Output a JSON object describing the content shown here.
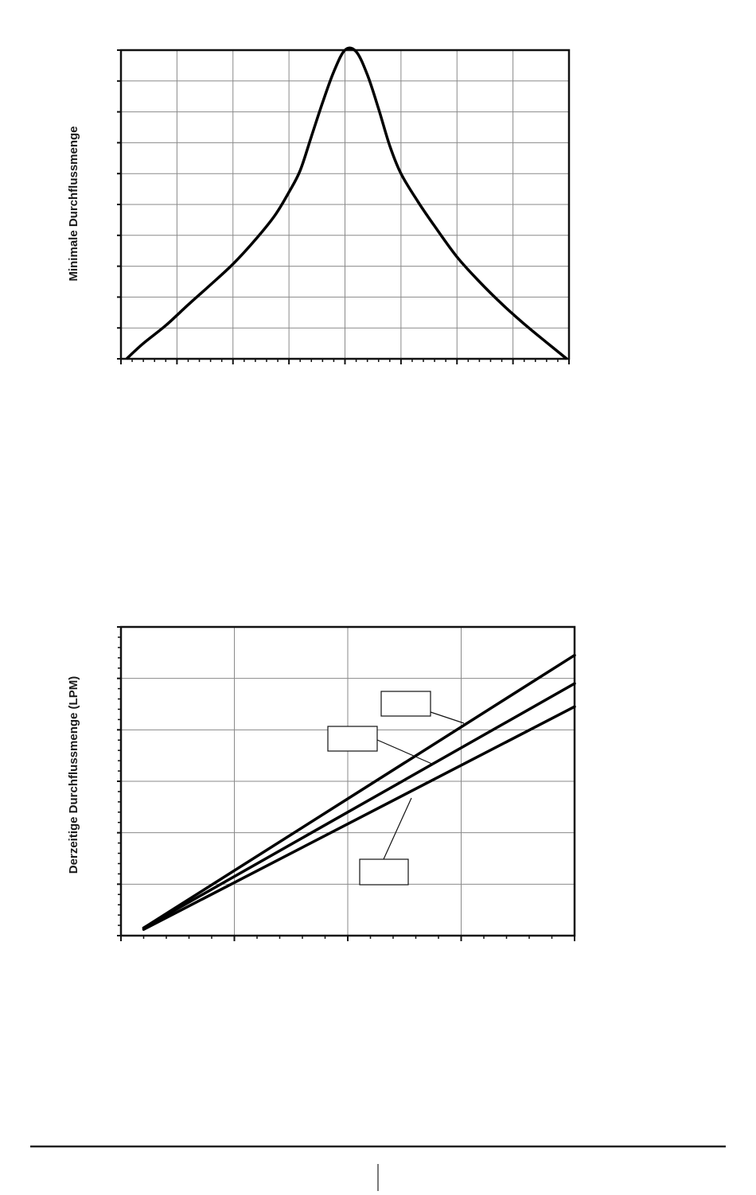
{
  "chart_data": [
    {
      "type": "line",
      "title": "",
      "xlabel": "",
      "ylabel": "Minimale Durchflussmenge",
      "xlim": [
        0,
        8
      ],
      "ylim": [
        0,
        10
      ],
      "grid": true,
      "x_major_divisions": 8,
      "x_minor_per_major": 5,
      "y_major_divisions": 10,
      "series": [
        {
          "x": [
            0.1,
            0.4,
            0.8,
            1.2,
            1.6,
            2.0,
            2.4,
            2.75,
            3.0,
            3.2,
            3.4,
            3.6,
            3.8,
            4.0,
            4.2,
            4.4,
            4.6,
            4.8,
            5.0,
            5.3,
            5.6,
            6.0,
            6.4,
            6.8,
            7.2,
            7.6,
            7.96
          ],
          "y": [
            0.0,
            0.5,
            1.08,
            1.75,
            2.4,
            3.07,
            3.86,
            4.65,
            5.4,
            6.1,
            7.2,
            8.3,
            9.3,
            10.0,
            9.95,
            9.2,
            8.1,
            6.9,
            6.0,
            5.1,
            4.3,
            3.3,
            2.5,
            1.78,
            1.13,
            0.53,
            0.0
          ]
        }
      ]
    },
    {
      "type": "line",
      "title": "",
      "xlabel": "",
      "ylabel": "Derzeitige Durchflussmenge (LPM)",
      "xlim": [
        0,
        4
      ],
      "ylim": [
        0,
        6
      ],
      "grid": true,
      "x_major_divisions": 4,
      "x_minor_per_major": 5,
      "y_major_divisions": 6,
      "y_minor_per_major": 5,
      "series": [
        {
          "label": "",
          "x": [
            0.2,
            4.0
          ],
          "y": [
            0.15,
            5.45
          ]
        },
        {
          "label": "",
          "x": [
            0.2,
            4.0
          ],
          "y": [
            0.15,
            4.9
          ]
        },
        {
          "label": "",
          "x": [
            0.2,
            4.0
          ],
          "y": [
            0.12,
            4.45
          ]
        }
      ]
    }
  ],
  "footer": {
    "page_number": ""
  }
}
